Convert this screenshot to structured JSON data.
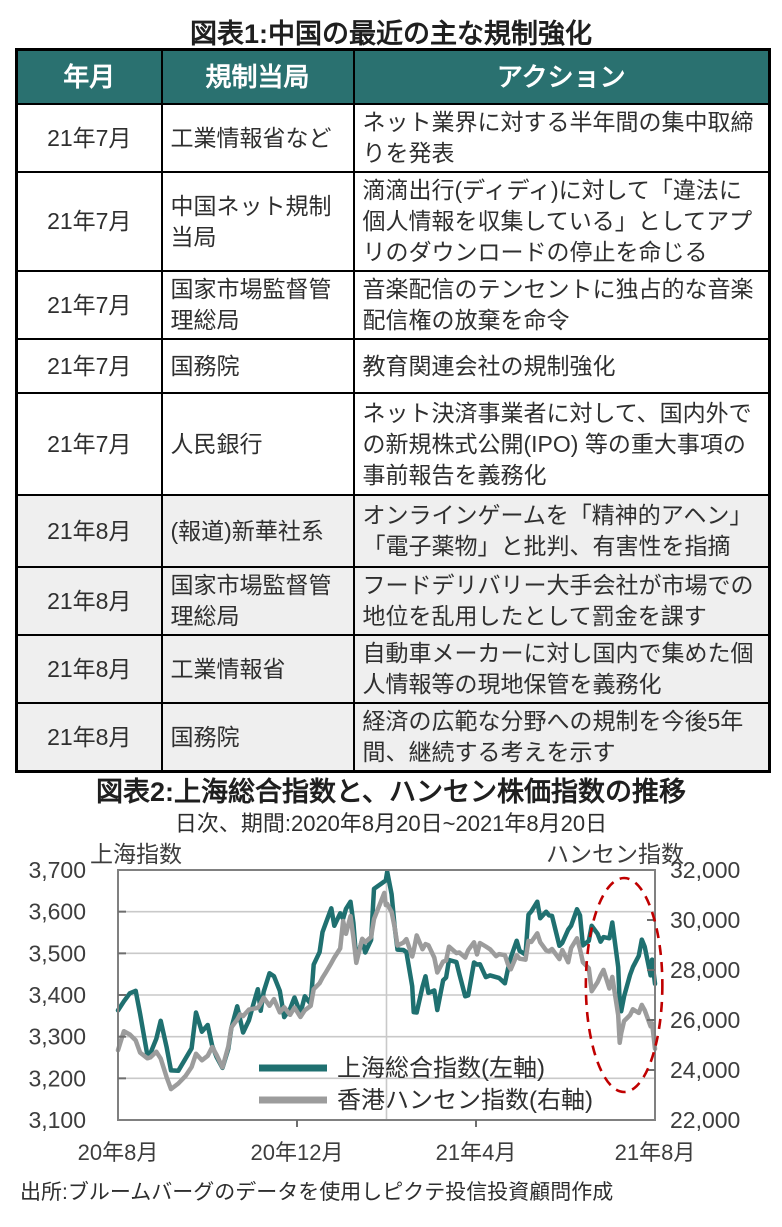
{
  "figure1": {
    "title": "図表1:中国の最近の主な規制強化",
    "headers": [
      "年月",
      "規制当局",
      "アクション"
    ],
    "rows": [
      {
        "date": "21年7月",
        "authority": "工業情報省など",
        "action": "ネット業界に対する半年間の集中取締りを発表",
        "shaded": false
      },
      {
        "date": "21年7月",
        "authority": "中国ネット規制当局",
        "action": "滴滴出行(ディディ)に対して「違法に個人情報を収集している」としてアプリのダウンロードの停止を命じる",
        "shaded": false
      },
      {
        "date": "21年7月",
        "authority": "国家市場監督管理総局",
        "action": "音楽配信のテンセントに独占的な音楽配信権の放棄を命令",
        "shaded": false
      },
      {
        "date": "21年7月",
        "authority": "国務院",
        "action": "教育関連会社の規制強化",
        "shaded": false
      },
      {
        "date": "21年7月",
        "authority": "人民銀行",
        "action": "ネット決済事業者に対して、国内外での新規株式公開(IPO) 等の重大事項の事前報告を義務化",
        "shaded": false
      },
      {
        "date": "21年8月",
        "authority": "(報道)新華社系",
        "action": "オンラインゲームを「精神的アヘン」「電子薬物」と批判、有害性を指摘",
        "shaded": true
      },
      {
        "date": "21年8月",
        "authority": "国家市場監督管理総局",
        "action": "フードデリバリー大手会社が市場での地位を乱用したとして罰金を課す",
        "shaded": true
      },
      {
        "date": "21年8月",
        "authority": "工業情報省",
        "action": "自動車メーカーに対し国内で集めた個人情報等の現地保管を義務化",
        "shaded": true
      },
      {
        "date": "21年8月",
        "authority": "国務院",
        "action": "経済の広範な分野への規制を今後5年間、継続する考えを示す",
        "shaded": true
      }
    ]
  },
  "figure2": {
    "title": "図表2:上海総合指数と、ハンセン株価指数の推移",
    "subtitle": "日次、期間:2020年8月20日~2021年8月20日",
    "source": "出所:ブルームバーグのデータを使用しピクテ投信投資顧問作成"
  },
  "chart_data": {
    "type": "line",
    "title": "図表2:上海総合指数と、ハンセン株価指数の推移",
    "subtitle": "日次、期間:2020年8月20日~2021年8月20日",
    "x_span_days": 365,
    "x_start": "2020年8月20日",
    "x_end": "2021年8月20日",
    "x_tick_labels": [
      "20年8月",
      "20年12月",
      "21年4月",
      "21年8月"
    ],
    "grid": "horizontal",
    "legend_position": "inside-bottom-center",
    "left_axis": {
      "label": "上海指数",
      "min": 3100,
      "max": 3700,
      "ticks": [
        "3,700",
        "3,600",
        "3,500",
        "3,400",
        "3,300",
        "3,200",
        "3,100"
      ]
    },
    "right_axis": {
      "label": "ハンセン指数",
      "min": 22000,
      "max": 32000,
      "ticks": [
        "32,000",
        "30,000",
        "28,000",
        "26,000",
        "24,000",
        "22,000"
      ]
    },
    "series": [
      {
        "name": "上海総合指数(左軸)",
        "axis": "left",
        "color": "#1F7070",
        "points": [
          [
            0,
            3363
          ],
          [
            4,
            3385
          ],
          [
            8,
            3404
          ],
          [
            12,
            3410
          ],
          [
            15,
            3355
          ],
          [
            20,
            3255
          ],
          [
            22,
            3260
          ],
          [
            26,
            3295
          ],
          [
            29,
            3338
          ],
          [
            33,
            3275
          ],
          [
            36,
            3219
          ],
          [
            41,
            3218
          ],
          [
            50,
            3272
          ],
          [
            53,
            3358
          ],
          [
            57,
            3312
          ],
          [
            61,
            3328
          ],
          [
            64,
            3278
          ],
          [
            67,
            3251
          ],
          [
            71,
            3225
          ],
          [
            75,
            3271
          ],
          [
            77,
            3320
          ],
          [
            81,
            3373
          ],
          [
            83,
            3342
          ],
          [
            85,
            3310
          ],
          [
            89,
            3339
          ],
          [
            92,
            3378
          ],
          [
            95,
            3414
          ],
          [
            97,
            3362
          ],
          [
            99,
            3408
          ],
          [
            103,
            3452
          ],
          [
            106,
            3445
          ],
          [
            110,
            3410
          ],
          [
            113,
            3347
          ],
          [
            117,
            3367
          ],
          [
            120,
            3394
          ],
          [
            124,
            3356
          ],
          [
            127,
            3397
          ],
          [
            131,
            3379
          ],
          [
            133,
            3473
          ],
          [
            137,
            3503
          ],
          [
            139,
            3551
          ],
          [
            141,
            3570
          ],
          [
            145,
            3608
          ],
          [
            147,
            3566
          ],
          [
            151,
            3596
          ],
          [
            153,
            3583
          ],
          [
            155,
            3607
          ],
          [
            158,
            3624
          ],
          [
            160,
            3573
          ],
          [
            162,
            3483
          ],
          [
            166,
            3533
          ],
          [
            168,
            3502
          ],
          [
            172,
            3532
          ],
          [
            174,
            3655
          ],
          [
            182,
            3675
          ],
          [
            183,
            3696
          ],
          [
            186,
            3642
          ],
          [
            188,
            3565
          ],
          [
            190,
            3509
          ],
          [
            194,
            3508
          ],
          [
            196,
            3503
          ],
          [
            200,
            3421
          ],
          [
            201,
            3359
          ],
          [
            203,
            3358
          ],
          [
            207,
            3420
          ],
          [
            209,
            3445
          ],
          [
            211,
            3405
          ],
          [
            215,
            3411
          ],
          [
            217,
            3364
          ],
          [
            221,
            3435
          ],
          [
            223,
            3442
          ],
          [
            225,
            3484
          ],
          [
            230,
            3479
          ],
          [
            232,
            3451
          ],
          [
            236,
            3397
          ],
          [
            238,
            3399
          ],
          [
            242,
            3478
          ],
          [
            244,
            3473
          ],
          [
            246,
            3474
          ],
          [
            250,
            3443
          ],
          [
            253,
            3447
          ],
          [
            259,
            3441
          ],
          [
            263,
            3428
          ],
          [
            265,
            3462
          ],
          [
            267,
            3490
          ],
          [
            271,
            3530
          ],
          [
            273,
            3506
          ],
          [
            277,
            3497
          ],
          [
            279,
            3593
          ],
          [
            281,
            3601
          ],
          [
            285,
            3624
          ],
          [
            287,
            3584
          ],
          [
            291,
            3600
          ],
          [
            293,
            3591
          ],
          [
            295,
            3590
          ],
          [
            300,
            3518
          ],
          [
            302,
            3525
          ],
          [
            306,
            3557
          ],
          [
            308,
            3566
          ],
          [
            312,
            3606
          ],
          [
            314,
            3591
          ],
          [
            316,
            3519
          ],
          [
            320,
            3530
          ],
          [
            322,
            3566
          ],
          [
            326,
            3547
          ],
          [
            328,
            3528
          ],
          [
            330,
            3539
          ],
          [
            334,
            3536
          ],
          [
            336,
            3574
          ],
          [
            340,
            3467
          ],
          [
            341,
            3381
          ],
          [
            342,
            3361
          ],
          [
            344,
            3397
          ],
          [
            348,
            3448
          ],
          [
            350,
            3467
          ],
          [
            354,
            3494
          ],
          [
            356,
            3533
          ],
          [
            358,
            3516
          ],
          [
            362,
            3447
          ],
          [
            363,
            3485
          ],
          [
            365,
            3427
          ]
        ]
      },
      {
        "name": "香港ハンセン指数(右軸)",
        "axis": "right",
        "color": "#9C9C9C",
        "points": [
          [
            0,
            24791
          ],
          [
            4,
            25551
          ],
          [
            8,
            25422
          ],
          [
            12,
            25185
          ],
          [
            15,
            24695
          ],
          [
            20,
            24469
          ],
          [
            22,
            24503
          ],
          [
            26,
            24733
          ],
          [
            29,
            24455
          ],
          [
            33,
            23717
          ],
          [
            36,
            23235
          ],
          [
            41,
            23459
          ],
          [
            46,
            23767
          ],
          [
            50,
            24119
          ],
          [
            53,
            24650
          ],
          [
            57,
            24387
          ],
          [
            61,
            24570
          ],
          [
            64,
            24919
          ],
          [
            67,
            24601
          ],
          [
            71,
            24107
          ],
          [
            75,
            24940
          ],
          [
            77,
            25696
          ],
          [
            81,
            26016
          ],
          [
            83,
            26226
          ],
          [
            85,
            26157
          ],
          [
            89,
            26415
          ],
          [
            92,
            26452
          ],
          [
            95,
            26486
          ],
          [
            97,
            26670
          ],
          [
            99,
            26895
          ],
          [
            103,
            26568
          ],
          [
            106,
            26836
          ],
          [
            110,
            26305
          ],
          [
            113,
            26506
          ],
          [
            117,
            26207
          ],
          [
            120,
            26499
          ],
          [
            124,
            26119
          ],
          [
            127,
            26386
          ],
          [
            131,
            26568
          ],
          [
            133,
            27231
          ],
          [
            137,
            27472
          ],
          [
            139,
            27693
          ],
          [
            141,
            27878
          ],
          [
            145,
            28276
          ],
          [
            147,
            28497
          ],
          [
            151,
            28863
          ],
          [
            153,
            29962
          ],
          [
            155,
            29448
          ],
          [
            158,
            30159
          ],
          [
            160,
            29298
          ],
          [
            162,
            28284
          ],
          [
            166,
            29249
          ],
          [
            168,
            29114
          ],
          [
            172,
            29320
          ],
          [
            174,
            30038
          ],
          [
            181,
            31085
          ],
          [
            182,
            30595
          ],
          [
            183,
            30645
          ],
          [
            186,
            30320
          ],
          [
            188,
            29718
          ],
          [
            190,
            28980
          ],
          [
            194,
            29096
          ],
          [
            196,
            29236
          ],
          [
            200,
            28540
          ],
          [
            201,
            28773
          ],
          [
            203,
            29385
          ],
          [
            207,
            28833
          ],
          [
            209,
            29034
          ],
          [
            211,
            28991
          ],
          [
            215,
            28497
          ],
          [
            217,
            27899
          ],
          [
            221,
            28338
          ],
          [
            223,
            28378
          ],
          [
            225,
            28938
          ],
          [
            230,
            28675
          ],
          [
            232,
            28699
          ],
          [
            236,
            28497
          ],
          [
            238,
            28793
          ],
          [
            242,
            29106
          ],
          [
            244,
            28621
          ],
          [
            246,
            29079
          ],
          [
            250,
            28941
          ],
          [
            253,
            28825
          ],
          [
            257,
            28557
          ],
          [
            259,
            28637
          ],
          [
            263,
            28596
          ],
          [
            265,
            28231
          ],
          [
            267,
            28028
          ],
          [
            271,
            28594
          ],
          [
            273,
            28451
          ],
          [
            277,
            28413
          ],
          [
            279,
            29166
          ],
          [
            281,
            29124
          ],
          [
            285,
            29468
          ],
          [
            287,
            29114
          ],
          [
            291,
            28788
          ],
          [
            293,
            28743
          ],
          [
            295,
            28842
          ],
          [
            300,
            28436
          ],
          [
            302,
            28801
          ],
          [
            306,
            28309
          ],
          [
            308,
            28882
          ],
          [
            312,
            29268
          ],
          [
            314,
            28828
          ],
          [
            316,
            28310
          ],
          [
            320,
            28072
          ],
          [
            322,
            27153
          ],
          [
            326,
            27515
          ],
          [
            328,
            27787
          ],
          [
            330,
            28005
          ],
          [
            334,
            27259
          ],
          [
            336,
            27723
          ],
          [
            340,
            26192
          ],
          [
            341,
            25086
          ],
          [
            342,
            25473
          ],
          [
            344,
            25961
          ],
          [
            348,
            26195
          ],
          [
            350,
            26426
          ],
          [
            354,
            26283
          ],
          [
            356,
            26605
          ],
          [
            358,
            26392
          ],
          [
            362,
            25745
          ],
          [
            363,
            25867
          ],
          [
            365,
            24849
          ]
        ]
      }
    ],
    "annotation": {
      "shape": "dashed-ellipse",
      "meaning": "2021年7月末~8月の急落局面の強調",
      "color": "#C00000",
      "axis": "right",
      "day_center": 344,
      "day_radius": 26,
      "value_center": 27400,
      "value_radius": 4280
    }
  },
  "colors": {
    "accent_teal": "#1F7070",
    "header_teal": "#2A7170",
    "series_gray": "#9C9C9C",
    "annotation_red": "#C00000",
    "shaded_row": "#EFEFEF",
    "gridline": "#C9C9C9",
    "frame": "#808080"
  }
}
